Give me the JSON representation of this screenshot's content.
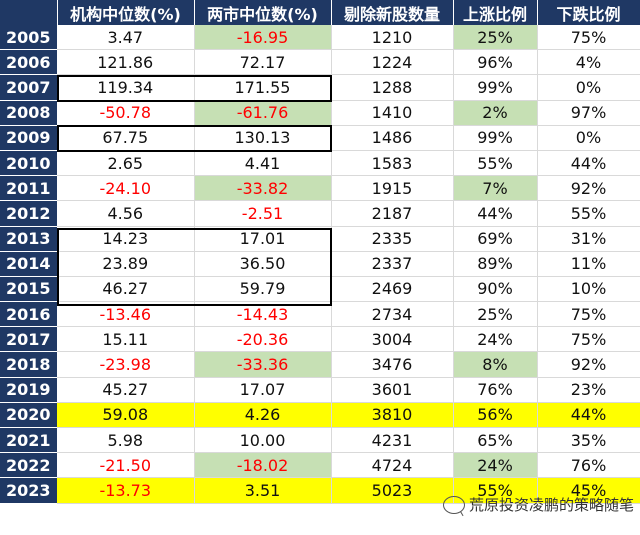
{
  "columns": [
    "",
    "机构中位数(%)",
    "两市中位数(%)",
    "剔除新股数量",
    "上涨比例",
    "下跌比例"
  ],
  "rows": [
    {
      "year": "2005",
      "inst": "3.47",
      "mkt": "-16.95",
      "count": "1210",
      "up": "25%",
      "down": "75%",
      "inst_neg": false,
      "mkt_neg": true,
      "mkt_green": true,
      "up_green": true,
      "hl": false
    },
    {
      "year": "2006",
      "inst": "121.86",
      "mkt": "72.17",
      "count": "1224",
      "up": "96%",
      "down": "4%",
      "inst_neg": false,
      "mkt_neg": false,
      "mkt_green": false,
      "up_green": false,
      "hl": false
    },
    {
      "year": "2007",
      "inst": "119.34",
      "mkt": "171.55",
      "count": "1288",
      "up": "99%",
      "down": "0%",
      "inst_neg": false,
      "mkt_neg": false,
      "mkt_green": false,
      "up_green": false,
      "hl": false
    },
    {
      "year": "2008",
      "inst": "-50.78",
      "mkt": "-61.76",
      "count": "1410",
      "up": "2%",
      "down": "97%",
      "inst_neg": true,
      "mkt_neg": true,
      "mkt_green": true,
      "up_green": true,
      "hl": false
    },
    {
      "year": "2009",
      "inst": "67.75",
      "mkt": "130.13",
      "count": "1486",
      "up": "99%",
      "down": "0%",
      "inst_neg": false,
      "mkt_neg": false,
      "mkt_green": false,
      "up_green": false,
      "hl": false
    },
    {
      "year": "2010",
      "inst": "2.65",
      "mkt": "4.41",
      "count": "1583",
      "up": "55%",
      "down": "44%",
      "inst_neg": false,
      "mkt_neg": false,
      "mkt_green": false,
      "up_green": false,
      "hl": false
    },
    {
      "year": "2011",
      "inst": "-24.10",
      "mkt": "-33.82",
      "count": "1915",
      "up": "7%",
      "down": "92%",
      "inst_neg": true,
      "mkt_neg": true,
      "mkt_green": true,
      "up_green": true,
      "hl": false
    },
    {
      "year": "2012",
      "inst": "4.56",
      "mkt": "-2.51",
      "count": "2187",
      "up": "44%",
      "down": "55%",
      "inst_neg": false,
      "mkt_neg": true,
      "mkt_green": false,
      "up_green": false,
      "hl": false
    },
    {
      "year": "2013",
      "inst": "14.23",
      "mkt": "17.01",
      "count": "2335",
      "up": "69%",
      "down": "31%",
      "inst_neg": false,
      "mkt_neg": false,
      "mkt_green": false,
      "up_green": false,
      "hl": false
    },
    {
      "year": "2014",
      "inst": "23.89",
      "mkt": "36.50",
      "count": "2337",
      "up": "89%",
      "down": "11%",
      "inst_neg": false,
      "mkt_neg": false,
      "mkt_green": false,
      "up_green": false,
      "hl": false
    },
    {
      "year": "2015",
      "inst": "46.27",
      "mkt": "59.79",
      "count": "2469",
      "up": "90%",
      "down": "10%",
      "inst_neg": false,
      "mkt_neg": false,
      "mkt_green": false,
      "up_green": false,
      "hl": false
    },
    {
      "year": "2016",
      "inst": "-13.46",
      "mkt": "-14.43",
      "count": "2734",
      "up": "25%",
      "down": "75%",
      "inst_neg": true,
      "mkt_neg": true,
      "mkt_green": false,
      "up_green": false,
      "hl": false
    },
    {
      "year": "2017",
      "inst": "15.11",
      "mkt": "-20.36",
      "count": "3004",
      "up": "24%",
      "down": "75%",
      "inst_neg": false,
      "mkt_neg": true,
      "mkt_green": false,
      "up_green": false,
      "hl": false
    },
    {
      "year": "2018",
      "inst": "-23.98",
      "mkt": "-33.36",
      "count": "3476",
      "up": "8%",
      "down": "92%",
      "inst_neg": true,
      "mkt_neg": true,
      "mkt_green": true,
      "up_green": true,
      "hl": false
    },
    {
      "year": "2019",
      "inst": "45.27",
      "mkt": "17.07",
      "count": "3601",
      "up": "76%",
      "down": "23%",
      "inst_neg": false,
      "mkt_neg": false,
      "mkt_green": false,
      "up_green": false,
      "hl": false
    },
    {
      "year": "2020",
      "inst": "59.08",
      "mkt": "4.26",
      "count": "3810",
      "up": "56%",
      "down": "44%",
      "inst_neg": false,
      "mkt_neg": false,
      "mkt_green": false,
      "up_green": false,
      "hl": true
    },
    {
      "year": "2021",
      "inst": "5.98",
      "mkt": "10.00",
      "count": "4231",
      "up": "65%",
      "down": "35%",
      "inst_neg": false,
      "mkt_neg": false,
      "mkt_green": false,
      "up_green": false,
      "hl": false
    },
    {
      "year": "2022",
      "inst": "-21.50",
      "mkt": "-18.02",
      "count": "4724",
      "up": "24%",
      "down": "76%",
      "inst_neg": true,
      "mkt_neg": true,
      "mkt_green": true,
      "up_green": true,
      "hl": false
    },
    {
      "year": "2023",
      "inst": "-13.73",
      "mkt": "3.51",
      "count": "5023",
      "up": "55%",
      "down": "45%",
      "inst_neg": true,
      "mkt_neg": false,
      "mkt_green": false,
      "up_green": false,
      "hl": true
    }
  ],
  "watermark": "荒原投资凌鹏的策略随笔",
  "colors": {
    "header_bg": "#1f3864",
    "negative": "#ff0000",
    "green_fill": "#c6e0b4",
    "highlight": "#ffff00"
  }
}
